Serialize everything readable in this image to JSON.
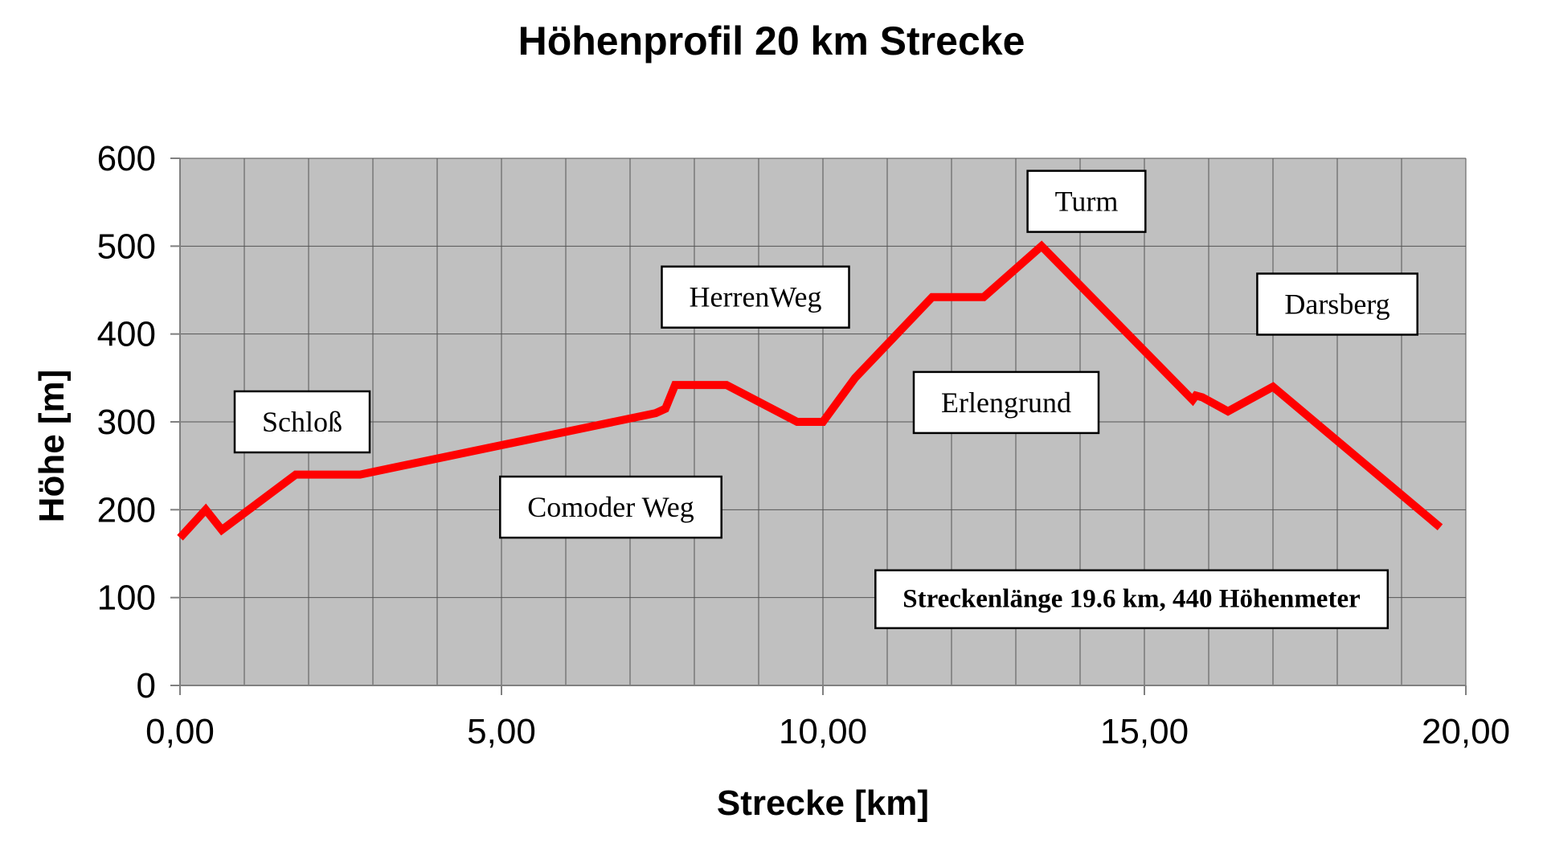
{
  "chart_data": {
    "type": "line",
    "title": "Höhenprofil 20 km Strecke",
    "xlabel": "Strecke [km]",
    "ylabel": "Höhe [m]",
    "xlim": [
      0,
      20
    ],
    "ylim": [
      0,
      600
    ],
    "x_ticks": [
      "0,00",
      "5,00",
      "10,00",
      "15,00",
      "20,00"
    ],
    "y_ticks": [
      "0",
      "100",
      "200",
      "300",
      "400",
      "500",
      "600"
    ],
    "grid": true,
    "plot_background": "#c0c0c0",
    "line_color": "#ff0000",
    "series": [
      {
        "x": [
          0.0,
          0.4,
          0.65,
          1.8,
          2.8,
          7.4,
          7.55,
          7.7,
          8.5,
          9.6,
          10.0,
          10.5,
          11.7,
          12.5,
          13.4,
          15.75,
          15.8,
          15.9,
          16.3,
          17.0,
          19.6
        ],
        "y": [
          168,
          200,
          177,
          240,
          240,
          310,
          315,
          342,
          342,
          300,
          300,
          350,
          442,
          442,
          500,
          325,
          330,
          328,
          312,
          340,
          180
        ]
      }
    ],
    "annotations": [
      {
        "text": "Schloß",
        "x": 1.9,
        "y": 300
      },
      {
        "text": "Comoder Weg",
        "x": 6.7,
        "y": 203
      },
      {
        "text": "HerrenWeg",
        "x": 8.95,
        "y": 442
      },
      {
        "text": "Erlengrund",
        "x": 12.85,
        "y": 322
      },
      {
        "text": "Turm",
        "x": 14.1,
        "y": 551
      },
      {
        "text": "Darsberg",
        "x": 18.0,
        "y": 434
      },
      {
        "text": "Streckenlänge 19.6 km, 440 Höhenmeter",
        "x": 14.8,
        "y": 100,
        "bold": true
      }
    ]
  }
}
